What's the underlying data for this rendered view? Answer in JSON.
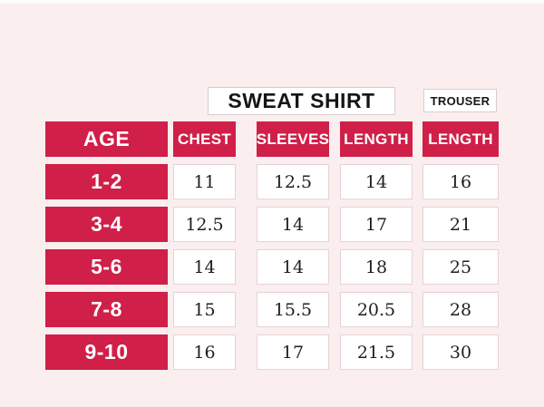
{
  "colors": {
    "accent_red": "#D01F48",
    "background_pink": "#FAEEEE",
    "cell_border": "#E4D4D7",
    "text_dark": "#1F1F1F"
  },
  "chart_data": {
    "type": "table",
    "group_headers": [
      "SWEAT SHIRT",
      "TROUSER"
    ],
    "columns": [
      "AGE",
      "CHEST",
      "SLEEVES",
      "LENGTH",
      "LENGTH"
    ],
    "rows": [
      [
        "1-2",
        "11",
        "12.5",
        "14",
        "16"
      ],
      [
        "3-4",
        "12.5",
        "14",
        "17",
        "21"
      ],
      [
        "5-6",
        "14",
        "14",
        "18",
        "25"
      ],
      [
        "7-8",
        "15",
        "15.5",
        "20.5",
        "28"
      ],
      [
        "9-10",
        "16",
        "17",
        "21.5",
        "30"
      ]
    ]
  }
}
